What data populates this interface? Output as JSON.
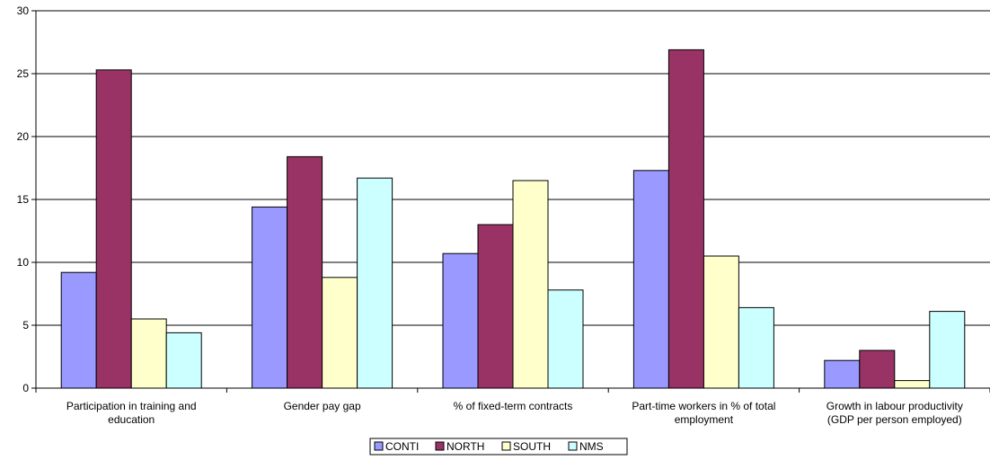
{
  "chart_data": {
    "type": "bar",
    "title": "",
    "xlabel": "",
    "ylabel": "",
    "ylim": [
      0,
      30
    ],
    "yticks": [
      0,
      5,
      10,
      15,
      20,
      25,
      30
    ],
    "grid": true,
    "legend_position": "bottom",
    "categories": [
      [
        "Participation in training and",
        "education"
      ],
      [
        "Gender pay gap"
      ],
      [
        "% of fixed-term contracts"
      ],
      [
        "Part-time workers in % of total",
        "employment"
      ],
      [
        "Growth in labour productivity",
        "(GDP per person employed)"
      ]
    ],
    "series": [
      {
        "name": "CONTI",
        "color": "#9999ff",
        "values": [
          9.2,
          14.4,
          10.7,
          17.3,
          2.2
        ]
      },
      {
        "name": "NORTH",
        "color": "#993366",
        "values": [
          25.3,
          18.4,
          13.0,
          26.9,
          3.0
        ]
      },
      {
        "name": "SOUTH",
        "color": "#ffffcc",
        "values": [
          5.5,
          8.8,
          16.5,
          10.5,
          0.6
        ]
      },
      {
        "name": "NMS",
        "color": "#ccffff",
        "values": [
          4.4,
          16.7,
          7.8,
          6.4,
          6.1
        ]
      }
    ]
  }
}
